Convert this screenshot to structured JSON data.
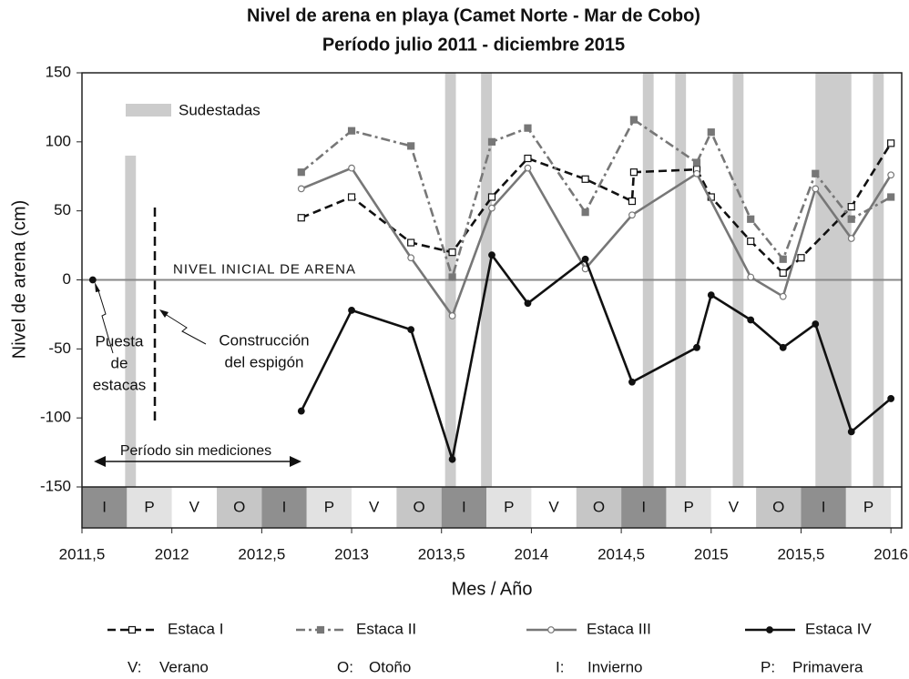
{
  "chart_data": {
    "type": "line",
    "title": [
      "Nivel de arena en playa (Camet Norte - Mar de Cobo)",
      "Período julio 2011 - diciembre 2015"
    ],
    "x_label": "Mes / Año",
    "y_label": "Nivel de arena (cm)",
    "xlim": [
      2011.5,
      2016.06
    ],
    "ylim": [
      -150,
      150
    ],
    "xticks": [
      {
        "value": 2011.5,
        "label": "2011,5"
      },
      2012,
      {
        "value": 2012.5,
        "label": "2012,5"
      },
      2013,
      {
        "value": 2013.5,
        "label": "2013,5"
      },
      2014,
      {
        "value": 2014.5,
        "label": "2014,5"
      },
      2015,
      {
        "value": 2015.5,
        "label": "2015,5"
      },
      2016
    ],
    "yticks": [
      150,
      100,
      50,
      0,
      -50,
      -100,
      -150
    ],
    "reference_line": 0,
    "reference_label": "NIVEL INICIAL DE ARENA",
    "series": [
      {
        "name": "Estaca I",
        "color": "#111111",
        "dash": "9,5",
        "marker": "open-square",
        "x": [
          2012.72,
          2013.0,
          2013.33,
          2013.56,
          2013.78,
          2013.98,
          2014.3,
          2014.56,
          2014.57,
          2014.92,
          2015.0,
          2015.22,
          2015.4,
          2015.5,
          2015.78,
          2016.0
        ],
        "values": [
          45,
          60,
          27,
          20,
          60,
          88,
          73,
          57,
          78,
          80,
          60,
          28,
          5,
          16,
          53,
          99
        ]
      },
      {
        "name": "Estaca II",
        "color": "#777777",
        "dash": "10,4,3,4",
        "marker": "square",
        "x": [
          2012.72,
          2013.0,
          2013.33,
          2013.56,
          2013.78,
          2013.98,
          2014.3,
          2014.57,
          2014.92,
          2015.0,
          2015.22,
          2015.4,
          2015.58,
          2015.78,
          2016.0
        ],
        "values": [
          78,
          108,
          97,
          2,
          100,
          110,
          49,
          116,
          85,
          107,
          44,
          15,
          77,
          44,
          60
        ]
      },
      {
        "name": "Estaca III",
        "color": "#777777",
        "dash": "",
        "marker": "open-circle",
        "x": [
          2012.72,
          2013.0,
          2013.33,
          2013.56,
          2013.78,
          2013.98,
          2014.3,
          2014.56,
          2014.92,
          2015.22,
          2015.4,
          2015.58,
          2015.78,
          2016.0
        ],
        "values": [
          66,
          81,
          16,
          -26,
          52,
          81,
          8,
          47,
          77,
          2,
          -12,
          66,
          30,
          76
        ]
      },
      {
        "name": "Estaca IV",
        "color": "#111111",
        "dash": "",
        "marker": "circle",
        "x": [
          2011.56,
          2012.0,
          2012.72,
          2013.0,
          2013.33,
          2013.56,
          2013.78,
          2013.98,
          2014.3,
          2014.56,
          2014.92,
          2015.0,
          2015.22,
          2015.4,
          2015.58,
          2015.78,
          2016.0
        ],
        "values": [
          0,
          null,
          -95,
          -22,
          -36,
          -130,
          18,
          -17,
          15,
          -74,
          -49,
          -11,
          -29,
          -49,
          -32,
          -110,
          -86
        ]
      }
    ],
    "sudestadas_label": "Sudestadas",
    "sudestadas_color": "#cccccc",
    "sudestadas": [
      {
        "start": 2011.74,
        "end": 2011.8,
        "top": 90
      },
      {
        "start": 2013.52,
        "end": 2013.58,
        "top": 150
      },
      {
        "start": 2013.72,
        "end": 2013.78,
        "top": 150
      },
      {
        "start": 2014.62,
        "end": 2014.68,
        "top": 150
      },
      {
        "start": 2014.8,
        "end": 2014.86,
        "top": 150
      },
      {
        "start": 2015.12,
        "end": 2015.18,
        "top": 150
      },
      {
        "start": 2015.58,
        "end": 2015.78,
        "top": 150
      },
      {
        "start": 2015.9,
        "end": 2015.96,
        "top": 150
      }
    ],
    "seasons": {
      "start": 2011.5,
      "width": 0.25,
      "codes": [
        "I",
        "P",
        "V",
        "O",
        "I",
        "P",
        "V",
        "O",
        "I",
        "P",
        "V",
        "O",
        "I",
        "P",
        "V",
        "O",
        "I",
        "P"
      ],
      "colors": {
        "I": "#8f8f8f",
        "P": "#e2e2e2",
        "V": "#ffffff",
        "O": "#c6c6c6"
      }
    },
    "annotations": {
      "puesta": [
        "Puesta",
        "de",
        "estacas"
      ],
      "construccion": [
        "Construcción",
        "del espigón"
      ],
      "sin_mediciones": "Período sin mediciones"
    },
    "season_legend": [
      {
        "code": "V:",
        "name": "Verano"
      },
      {
        "code": "O:",
        "name": "Otoño"
      },
      {
        "code": "I:",
        "name": "Invierno"
      },
      {
        "code": "P:",
        "name": "Primavera"
      }
    ]
  }
}
